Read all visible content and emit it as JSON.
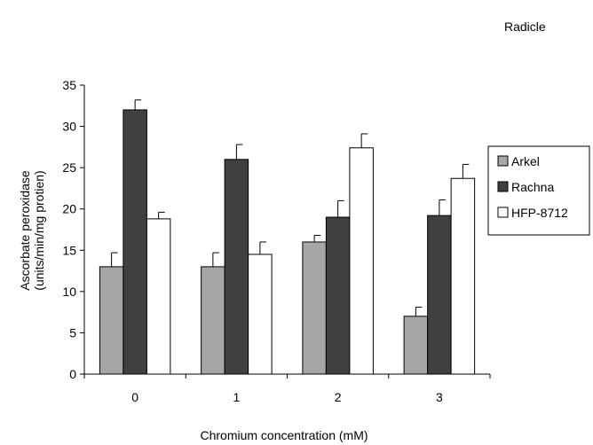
{
  "chart_data": {
    "type": "bar",
    "title": "Radicle",
    "xlabel": "Chromium concentration (mM)",
    "ylabel_lines": [
      "Ascorbate peroxidase",
      "(units/min/mg protien)"
    ],
    "categories": [
      "0",
      "1",
      "2",
      "3"
    ],
    "ylim": [
      0,
      35
    ],
    "yticks": [
      0,
      5,
      10,
      15,
      20,
      25,
      30,
      35
    ],
    "grid": false,
    "legend_position": "right",
    "series": [
      {
        "name": "Arkel",
        "color": "#a6a6a6",
        "values": [
          13,
          13,
          16,
          7
        ],
        "errors": [
          1.7,
          1.7,
          0.8,
          1.1
        ]
      },
      {
        "name": "Rachna",
        "color": "#404040",
        "values": [
          32,
          26,
          19,
          19.2
        ],
        "errors": [
          1.2,
          1.8,
          2.0,
          1.9
        ]
      },
      {
        "name": "HFP-8712",
        "color": "#ffffff",
        "values": [
          18.8,
          14.5,
          27.4,
          23.7
        ],
        "errors": [
          0.8,
          1.5,
          1.7,
          1.7
        ]
      }
    ]
  }
}
